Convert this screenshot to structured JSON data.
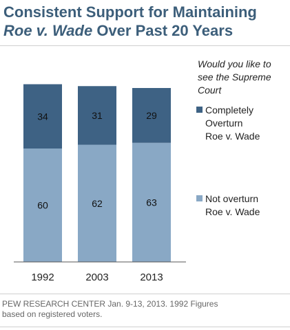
{
  "title": {
    "line1": "Consistent Support for Maintaining",
    "line2_italic": "Roe v. Wade",
    "line2_rest": " Over Past 20 Years"
  },
  "legend": {
    "question": "Would you like to see the Supreme Court",
    "items": [
      {
        "label": "Completely\nOverturn\nRoe v. Wade",
        "color": "#3e6284"
      },
      {
        "label": "Not overturn\nRoe v. Wade",
        "color": "#89a8c5"
      }
    ]
  },
  "source": "PEW RESEARCH  CENTER Jan. 9-13, 2013. 1992 Figures\nbased on registered voters.",
  "chart_data": {
    "type": "bar",
    "stacked": true,
    "categories": [
      "1992",
      "2003",
      "2013"
    ],
    "series": [
      {
        "name": "Not overturn Roe v. Wade",
        "values": [
          60,
          62,
          63
        ],
        "color": "#89a8c5"
      },
      {
        "name": "Completely Overturn Roe v. Wade",
        "values": [
          34,
          31,
          29
        ],
        "color": "#3e6284"
      }
    ],
    "title": "Consistent Support for Maintaining Roe v. Wade Over Past 20 Years",
    "xlabel": "",
    "ylabel": "",
    "ylim": [
      0,
      100
    ],
    "grid": false,
    "legend_position": "right"
  }
}
